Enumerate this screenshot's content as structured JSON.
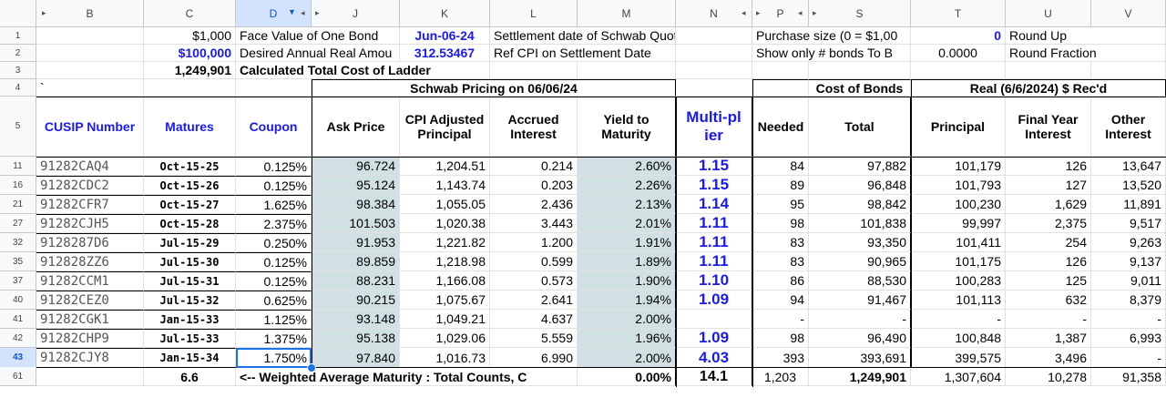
{
  "columns": [
    {
      "letter": "",
      "w": 40
    },
    {
      "letter": "B",
      "w": 118
    },
    {
      "letter": "C",
      "w": 101
    },
    {
      "letter": "D",
      "w": 83
    },
    {
      "letter": "J",
      "w": 97
    },
    {
      "letter": "K",
      "w": 99
    },
    {
      "letter": "L",
      "w": 96
    },
    {
      "letter": "M",
      "w": 108
    },
    {
      "letter": "N",
      "w": 84
    },
    {
      "letter": "P",
      "w": 62
    },
    {
      "letter": "S",
      "w": 112
    },
    {
      "letter": "T",
      "w": 104
    },
    {
      "letter": "U",
      "w": 94
    },
    {
      "letter": "V",
      "w": 82
    }
  ],
  "header_row_labels": [
    "B",
    "C",
    "D",
    "J",
    "K",
    "L",
    "M",
    "N",
    "P",
    "S",
    "T",
    "U",
    "V"
  ],
  "row_numbers": [
    "1",
    "2",
    "3",
    "4",
    "5",
    "11",
    "16",
    "21",
    "27",
    "32",
    "35",
    "37",
    "40",
    "41",
    "42",
    "43",
    "61"
  ],
  "top": {
    "face_value": "$1,000",
    "face_value_label": "Face Value of One Bond",
    "settlement_date": "Jun-06-24",
    "settlement_label": "Settlement date of Schwab Quotes",
    "purchase_size_label": "Purchase size (0 = $1,00",
    "purchase_size_value": "0",
    "round_up_label": "Round Up",
    "desired_income": "$100,000",
    "desired_income_label": "Desired Annual Real Amou",
    "ref_cpi": "312.53467",
    "ref_cpi_label": "Ref CPI on Settlement Date",
    "show_only_label": "Show only # bonds To B",
    "show_only_value": "0.0000",
    "round_fraction_label": "Round Fraction",
    "total_cost": "1,249,901",
    "total_cost_label": "Calculated Total Cost of Ladder",
    "row4_b": "`",
    "schwab_pricing": "Schwab Pricing on 06/06/24",
    "cost_of_bonds": "Cost of Bonds",
    "real_rec": "Real (6/6/2024) $ Rec'd"
  },
  "headers": {
    "cusip": "CUSIP Number",
    "matures": "Matures",
    "coupon": "Coupon",
    "ask": "Ask Price",
    "cpi_adj": "CPI Adjusted Principal",
    "accrued": "Accrued Interest",
    "ytm": "Yield to Maturity",
    "multiplier": "Multi-pl ier",
    "needed": "Needed",
    "total": "Total",
    "principal": "Principal",
    "final_year": "Final Year Interest",
    "other": "Other Interest"
  },
  "rows": [
    {
      "cusip": "91282CAQ4",
      "matures": "Oct-15-25",
      "coupon": "0.125%",
      "ask": "96.724",
      "cpi": "1,204.51",
      "accrued": "0.214",
      "ytm": "2.60%",
      "mult": "1.15",
      "needed": "84",
      "total": "97,882",
      "principal": "101,179",
      "final": "126",
      "other": "13,647"
    },
    {
      "cusip": "91282CDC2",
      "matures": "Oct-15-26",
      "coupon": "0.125%",
      "ask": "95.124",
      "cpi": "1,143.74",
      "accrued": "0.203",
      "ytm": "2.26%",
      "mult": "1.15",
      "needed": "89",
      "total": "96,848",
      "principal": "101,793",
      "final": "127",
      "other": "13,520"
    },
    {
      "cusip": "91282CFR7",
      "matures": "Oct-15-27",
      "coupon": "1.625%",
      "ask": "98.384",
      "cpi": "1,055.05",
      "accrued": "2.436",
      "ytm": "2.13%",
      "mult": "1.14",
      "needed": "95",
      "total": "98,842",
      "principal": "100,230",
      "final": "1,629",
      "other": "11,891"
    },
    {
      "cusip": "91282CJH5",
      "matures": "Oct-15-28",
      "coupon": "2.375%",
      "ask": "101.503",
      "cpi": "1,020.38",
      "accrued": "3.443",
      "ytm": "2.01%",
      "mult": "1.11",
      "needed": "98",
      "total": "101,838",
      "principal": "99,997",
      "final": "2,375",
      "other": "9,517"
    },
    {
      "cusip": "9128287D6",
      "matures": "Jul-15-29",
      "coupon": "0.250%",
      "ask": "91.953",
      "cpi": "1,221.82",
      "accrued": "1.200",
      "ytm": "1.91%",
      "mult": "1.11",
      "needed": "83",
      "total": "93,350",
      "principal": "101,411",
      "final": "254",
      "other": "9,263"
    },
    {
      "cusip": "912828ZZ6",
      "matures": "Jul-15-30",
      "coupon": "0.125%",
      "ask": "89.859",
      "cpi": "1,218.98",
      "accrued": "0.599",
      "ytm": "1.89%",
      "mult": "1.11",
      "needed": "83",
      "total": "90,965",
      "principal": "101,175",
      "final": "126",
      "other": "9,137"
    },
    {
      "cusip": "91282CCM1",
      "matures": "Jul-15-31",
      "coupon": "0.125%",
      "ask": "88.231",
      "cpi": "1,166.08",
      "accrued": "0.573",
      "ytm": "1.90%",
      "mult": "1.10",
      "needed": "86",
      "total": "88,530",
      "principal": "100,283",
      "final": "125",
      "other": "9,011"
    },
    {
      "cusip": "91282CEZ0",
      "matures": "Jul-15-32",
      "coupon": "0.625%",
      "ask": "90.215",
      "cpi": "1,075.67",
      "accrued": "2.641",
      "ytm": "1.94%",
      "mult": "1.09",
      "needed": "94",
      "total": "91,467",
      "principal": "101,113",
      "final": "632",
      "other": "8,379"
    },
    {
      "cusip": "91282CGK1",
      "matures": "Jan-15-33",
      "coupon": "1.125%",
      "ask": "93.148",
      "cpi": "1,049.21",
      "accrued": "4.637",
      "ytm": "2.00%",
      "mult": "",
      "needed": "-",
      "total": "-",
      "principal": "-",
      "final": "-",
      "other": "-"
    },
    {
      "cusip": "91282CHP9",
      "matures": "Jul-15-33",
      "coupon": "1.375%",
      "ask": "95.138",
      "cpi": "1,029.06",
      "accrued": "5.559",
      "ytm": "1.96%",
      "mult": "1.09",
      "needed": "98",
      "total": "96,490",
      "principal": "100,848",
      "final": "1,387",
      "other": "6,993"
    },
    {
      "cusip": "91282CJY8",
      "matures": "Jan-15-34",
      "coupon": "1.750%",
      "ask": "97.840",
      "cpi": "1,016.73",
      "accrued": "6.990",
      "ytm": "2.00%",
      "mult": "4.03",
      "needed": "393",
      "total": "393,691",
      "principal": "399,575",
      "final": "3,496",
      "other": "-"
    }
  ],
  "footer": {
    "wam": "6.6",
    "wam_label": "<-- Weighted Average Maturity : Total Counts, C",
    "ytm": "0.00%",
    "mult": "14.1",
    "needed": "1,203",
    "total": "1,249,901",
    "principal": "1,307,604",
    "final": "10,278",
    "other": "91,358"
  }
}
